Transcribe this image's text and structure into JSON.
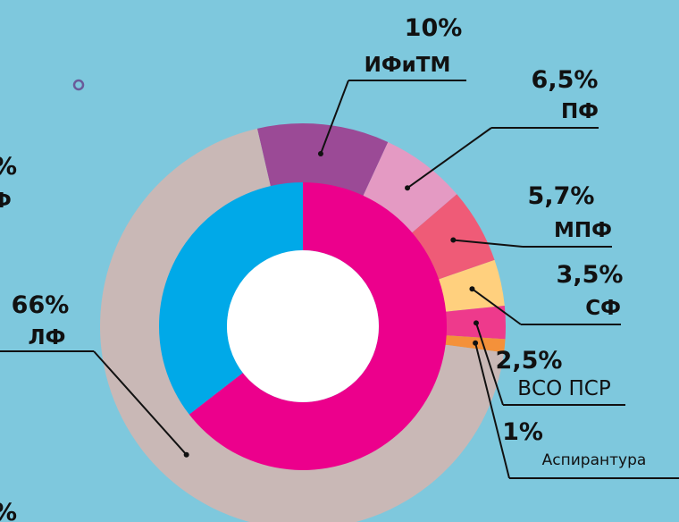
{
  "chart_data": {
    "type": "donut",
    "series": [
      {
        "categories": [
          "ИФиТМ",
          "ПФ",
          "МПФ",
          "СФ",
          "ВСО ПСР",
          "Аспирантура",
          "ЛФ"
        ],
        "values": [
          10,
          6.5,
          5.7,
          3.5,
          2.5,
          1,
          66
        ],
        "value_labels": [
          "10%",
          "6,5%",
          "5,7%",
          "3,5%",
          "2,5%",
          "1%",
          "66%"
        ],
        "colors": [
          "#9b4a96",
          "#e49ac3",
          "#ef5b77",
          "#ffd07e",
          "#ee3a8c",
          "#f4913a",
          "#c9b8b6"
        ]
      },
      {
        "values": [
          64.5,
          35.5
        ],
        "colors": [
          "#ec008c",
          "#00a9e8"
        ]
      }
    ],
    "fragments": [
      "%",
      "Ф",
      "%"
    ]
  }
}
